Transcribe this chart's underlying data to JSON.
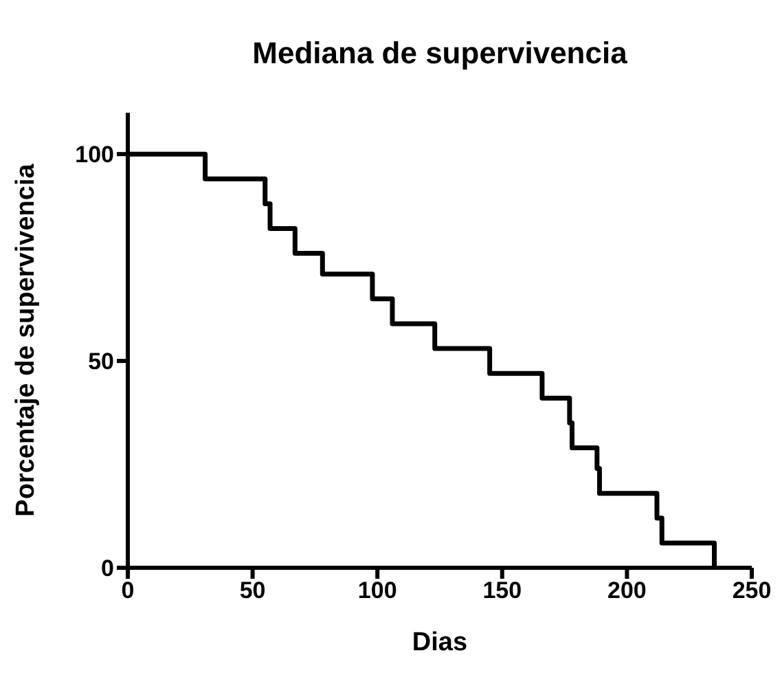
{
  "chart_data": {
    "type": "step",
    "title": "Mediana de supervivencia",
    "xlabel": "Dias",
    "ylabel": "Porcentaje de supervivencia",
    "x": [
      0,
      31,
      55,
      57,
      67,
      78,
      98,
      106,
      123,
      145,
      166,
      177,
      178,
      188,
      189,
      212,
      214,
      235
    ],
    "values": [
      100,
      94,
      88,
      82,
      76,
      71,
      65,
      59,
      53,
      47,
      41,
      35,
      29,
      24,
      18,
      12,
      6,
      0
    ],
    "color": "#000000",
    "xlim": [
      0,
      250
    ],
    "xticks": [
      0,
      50,
      100,
      150,
      200,
      250
    ],
    "ylim": [
      0,
      110
    ],
    "yticks": [
      0,
      50,
      100
    ],
    "grid": false,
    "legend": false,
    "marker": "none",
    "line_style": "solid"
  }
}
